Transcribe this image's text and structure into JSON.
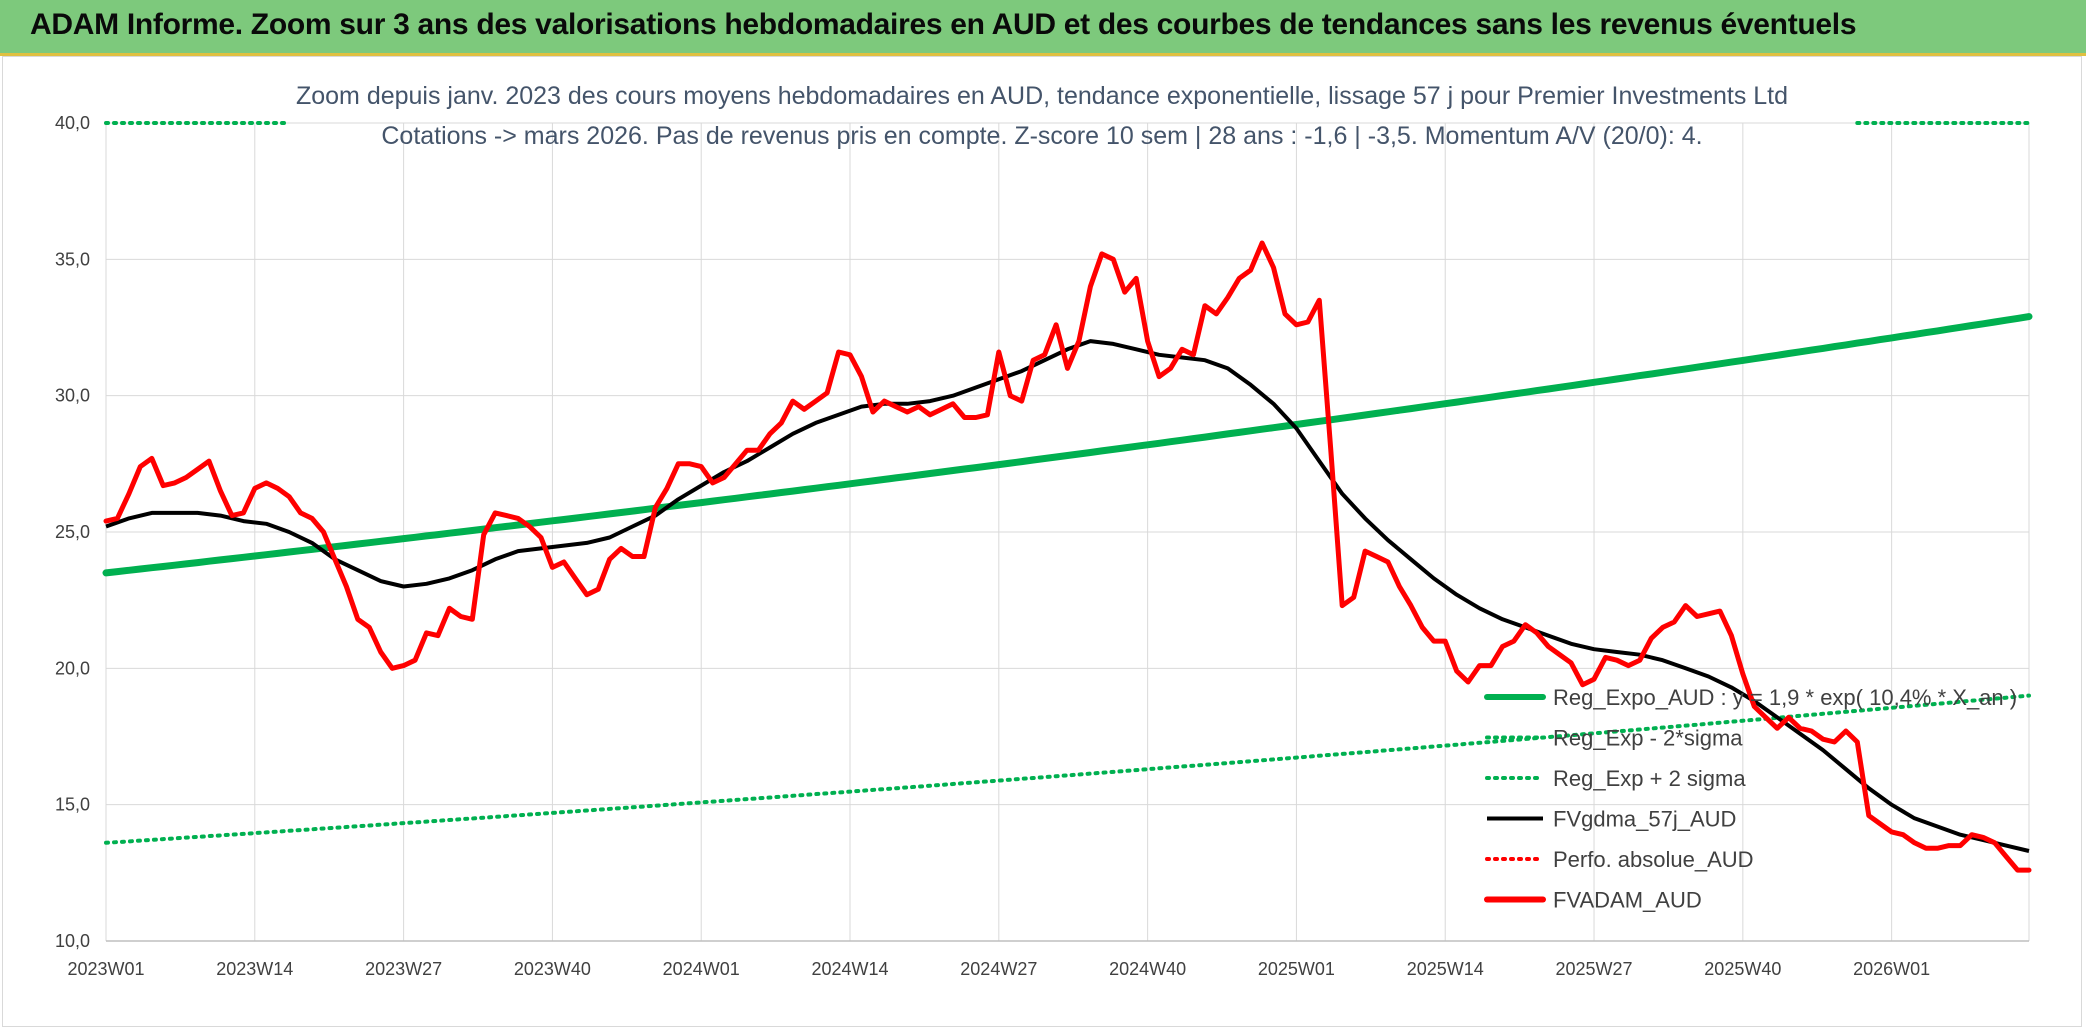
{
  "banner": {
    "title": "ADAM Informe. Zoom sur 3 ans des valorisations hebdomadaires en AUD et des courbes de tendances sans les revenus éventuels"
  },
  "chart_data": {
    "type": "line",
    "subtitle_line1": "Zoom depuis janv. 2023 des cours moyens hebdomadaires en AUD, tendance exponentielle, lissage 57 j pour Premier Investments Ltd",
    "subtitle_line2": "Cotations -> mars 2026. Pas de revenus pris en compte. Z-score 10 sem | 28 ans : -1,6 | -3,5. Momentum A/V (20/0): 4.",
    "xlabel": "",
    "ylabel": "",
    "ylim": [
      10,
      40
    ],
    "yticks": [
      "10,0",
      "15,0",
      "20,0",
      "25,0",
      "30,0",
      "35,0",
      "40,0"
    ],
    "x_tick_labels": [
      "2023W01",
      "2023W14",
      "2023W27",
      "2023W40",
      "2024W01",
      "2024W14",
      "2024W27",
      "2024W40",
      "2025W01",
      "2025W14",
      "2025W27",
      "2025W40",
      "2026W01"
    ],
    "x_tick_index": [
      0,
      13,
      26,
      39,
      52,
      65,
      78,
      91,
      104,
      117,
      130,
      143,
      156
    ],
    "n_weeks": 169,
    "gridlines": "horizontal and vertical",
    "legend_position": "bottom-right",
    "series": [
      {
        "name": "Reg_Expo_AUD : y = 1,9 * exp( 10,4% * X_an )",
        "color": "#00b050",
        "style": "solid-thick",
        "points": [
          [
            0,
            23.5
          ],
          [
            168,
            32.9
          ]
        ],
        "curve": "exponential"
      },
      {
        "name": "Reg_Exp - 2*sigma",
        "color": "#00b050",
        "style": "dotted",
        "points": [
          [
            0,
            13.6
          ],
          [
            168,
            19.0
          ]
        ],
        "curve": "exponential"
      },
      {
        "name": "Reg_Exp + 2 sigma",
        "color": "#00b050",
        "style": "dotted",
        "points": [
          [
            0,
            40.0
          ],
          [
            16,
            40.0
          ],
          [
            153,
            40.0
          ],
          [
            168,
            40.0
          ]
        ],
        "visible_ranges": [
          [
            0,
            16
          ],
          [
            153,
            168
          ]
        ],
        "curve": "linear"
      },
      {
        "name": "FVgdma_57j_AUD",
        "color": "#000000",
        "style": "solid",
        "points": [
          [
            0,
            25.2
          ],
          [
            2,
            25.5
          ],
          [
            4,
            25.7
          ],
          [
            6,
            25.7
          ],
          [
            8,
            25.7
          ],
          [
            10,
            25.6
          ],
          [
            12,
            25.4
          ],
          [
            14,
            25.3
          ],
          [
            16,
            25.0
          ],
          [
            18,
            24.6
          ],
          [
            20,
            24.0
          ],
          [
            22,
            23.6
          ],
          [
            24,
            23.2
          ],
          [
            26,
            23.0
          ],
          [
            28,
            23.1
          ],
          [
            30,
            23.3
          ],
          [
            32,
            23.6
          ],
          [
            34,
            24.0
          ],
          [
            36,
            24.3
          ],
          [
            38,
            24.4
          ],
          [
            40,
            24.5
          ],
          [
            42,
            24.6
          ],
          [
            44,
            24.8
          ],
          [
            46,
            25.2
          ],
          [
            48,
            25.6
          ],
          [
            50,
            26.2
          ],
          [
            52,
            26.7
          ],
          [
            54,
            27.2
          ],
          [
            56,
            27.6
          ],
          [
            58,
            28.1
          ],
          [
            60,
            28.6
          ],
          [
            62,
            29.0
          ],
          [
            64,
            29.3
          ],
          [
            66,
            29.6
          ],
          [
            68,
            29.7
          ],
          [
            70,
            29.7
          ],
          [
            72,
            29.8
          ],
          [
            74,
            30.0
          ],
          [
            76,
            30.3
          ],
          [
            78,
            30.6
          ],
          [
            80,
            30.9
          ],
          [
            82,
            31.3
          ],
          [
            84,
            31.7
          ],
          [
            86,
            32.0
          ],
          [
            88,
            31.9
          ],
          [
            90,
            31.7
          ],
          [
            92,
            31.5
          ],
          [
            94,
            31.4
          ],
          [
            96,
            31.3
          ],
          [
            98,
            31.0
          ],
          [
            100,
            30.4
          ],
          [
            102,
            29.7
          ],
          [
            104,
            28.8
          ],
          [
            106,
            27.6
          ],
          [
            108,
            26.4
          ],
          [
            110,
            25.5
          ],
          [
            112,
            24.7
          ],
          [
            114,
            24.0
          ],
          [
            116,
            23.3
          ],
          [
            118,
            22.7
          ],
          [
            120,
            22.2
          ],
          [
            122,
            21.8
          ],
          [
            124,
            21.5
          ],
          [
            126,
            21.2
          ],
          [
            128,
            20.9
          ],
          [
            130,
            20.7
          ],
          [
            132,
            20.6
          ],
          [
            134,
            20.5
          ],
          [
            136,
            20.3
          ],
          [
            138,
            20.0
          ],
          [
            140,
            19.7
          ],
          [
            142,
            19.3
          ],
          [
            144,
            18.8
          ],
          [
            146,
            18.2
          ],
          [
            148,
            17.6
          ],
          [
            150,
            17.0
          ],
          [
            152,
            16.3
          ],
          [
            154,
            15.6
          ],
          [
            156,
            15.0
          ],
          [
            158,
            14.5
          ],
          [
            160,
            14.2
          ],
          [
            162,
            13.9
          ],
          [
            164,
            13.7
          ],
          [
            166,
            13.5
          ],
          [
            168,
            13.3
          ]
        ]
      },
      {
        "name": "Perfo. absolue_AUD",
        "color": "#ff0000",
        "style": "dotted",
        "points": []
      },
      {
        "name": "FVADAM_AUD",
        "color": "#ff0000",
        "style": "solid-thick",
        "points": [
          [
            0,
            25.4
          ],
          [
            1,
            25.5
          ],
          [
            2,
            26.4
          ],
          [
            3,
            27.4
          ],
          [
            4,
            27.7
          ],
          [
            5,
            26.7
          ],
          [
            6,
            26.8
          ],
          [
            7,
            27.0
          ],
          [
            8,
            27.3
          ],
          [
            9,
            27.6
          ],
          [
            10,
            26.5
          ],
          [
            11,
            25.6
          ],
          [
            12,
            25.7
          ],
          [
            13,
            26.6
          ],
          [
            14,
            26.8
          ],
          [
            15,
            26.6
          ],
          [
            16,
            26.3
          ],
          [
            17,
            25.7
          ],
          [
            18,
            25.5
          ],
          [
            19,
            25.0
          ],
          [
            20,
            24.0
          ],
          [
            21,
            23.0
          ],
          [
            22,
            21.8
          ],
          [
            23,
            21.5
          ],
          [
            24,
            20.6
          ],
          [
            25,
            20.0
          ],
          [
            26,
            20.1
          ],
          [
            27,
            20.3
          ],
          [
            28,
            21.3
          ],
          [
            29,
            21.2
          ],
          [
            30,
            22.2
          ],
          [
            31,
            21.9
          ],
          [
            32,
            21.8
          ],
          [
            33,
            24.9
          ],
          [
            34,
            25.7
          ],
          [
            35,
            25.6
          ],
          [
            36,
            25.5
          ],
          [
            37,
            25.2
          ],
          [
            38,
            24.8
          ],
          [
            39,
            23.7
          ],
          [
            40,
            23.9
          ],
          [
            41,
            23.3
          ],
          [
            42,
            22.7
          ],
          [
            43,
            22.9
          ],
          [
            44,
            24.0
          ],
          [
            45,
            24.4
          ],
          [
            46,
            24.1
          ],
          [
            47,
            24.1
          ],
          [
            48,
            25.9
          ],
          [
            49,
            26.6
          ],
          [
            50,
            27.5
          ],
          [
            51,
            27.5
          ],
          [
            52,
            27.4
          ],
          [
            53,
            26.8
          ],
          [
            54,
            27.0
          ],
          [
            55,
            27.5
          ],
          [
            56,
            28.0
          ],
          [
            57,
            28.0
          ],
          [
            58,
            28.6
          ],
          [
            59,
            29.0
          ],
          [
            60,
            29.8
          ],
          [
            61,
            29.5
          ],
          [
            62,
            29.8
          ],
          [
            63,
            30.1
          ],
          [
            64,
            31.6
          ],
          [
            65,
            31.5
          ],
          [
            66,
            30.7
          ],
          [
            67,
            29.4
          ],
          [
            68,
            29.8
          ],
          [
            69,
            29.6
          ],
          [
            70,
            29.4
          ],
          [
            71,
            29.6
          ],
          [
            72,
            29.3
          ],
          [
            73,
            29.5
          ],
          [
            74,
            29.7
          ],
          [
            75,
            29.2
          ],
          [
            76,
            29.2
          ],
          [
            77,
            29.3
          ],
          [
            78,
            31.6
          ],
          [
            79,
            30.0
          ],
          [
            80,
            29.8
          ],
          [
            81,
            31.3
          ],
          [
            82,
            31.5
          ],
          [
            83,
            32.6
          ],
          [
            84,
            31.0
          ],
          [
            85,
            32.0
          ],
          [
            86,
            34.0
          ],
          [
            87,
            35.2
          ],
          [
            88,
            35.0
          ],
          [
            89,
            33.8
          ],
          [
            90,
            34.3
          ],
          [
            91,
            32.0
          ],
          [
            92,
            30.7
          ],
          [
            93,
            31.0
          ],
          [
            94,
            31.7
          ],
          [
            95,
            31.5
          ],
          [
            96,
            33.3
          ],
          [
            97,
            33.0
          ],
          [
            98,
            33.6
          ],
          [
            99,
            34.3
          ],
          [
            100,
            34.6
          ],
          [
            101,
            35.6
          ],
          [
            102,
            34.7
          ],
          [
            103,
            33.0
          ],
          [
            104,
            32.6
          ],
          [
            105,
            32.7
          ],
          [
            106,
            33.5
          ],
          [
            107,
            28.0
          ],
          [
            108,
            22.3
          ],
          [
            109,
            22.6
          ],
          [
            110,
            24.3
          ],
          [
            111,
            24.1
          ],
          [
            112,
            23.9
          ],
          [
            113,
            23.0
          ],
          [
            114,
            22.3
          ],
          [
            115,
            21.5
          ],
          [
            116,
            21.0
          ],
          [
            117,
            21.0
          ],
          [
            118,
            19.9
          ],
          [
            119,
            19.5
          ],
          [
            120,
            20.1
          ],
          [
            121,
            20.1
          ],
          [
            122,
            20.8
          ],
          [
            123,
            21.0
          ],
          [
            124,
            21.6
          ],
          [
            125,
            21.3
          ],
          [
            126,
            20.8
          ],
          [
            127,
            20.5
          ],
          [
            128,
            20.2
          ],
          [
            129,
            19.4
          ],
          [
            130,
            19.6
          ],
          [
            131,
            20.4
          ],
          [
            132,
            20.3
          ],
          [
            133,
            20.1
          ],
          [
            134,
            20.3
          ],
          [
            135,
            21.1
          ],
          [
            136,
            21.5
          ],
          [
            137,
            21.7
          ],
          [
            138,
            22.3
          ],
          [
            139,
            21.9
          ],
          [
            140,
            22.0
          ],
          [
            141,
            22.1
          ],
          [
            142,
            21.2
          ],
          [
            143,
            19.8
          ],
          [
            144,
            18.6
          ],
          [
            145,
            18.2
          ],
          [
            146,
            17.8
          ],
          [
            147,
            18.2
          ],
          [
            148,
            17.8
          ],
          [
            149,
            17.7
          ],
          [
            150,
            17.4
          ],
          [
            151,
            17.3
          ],
          [
            152,
            17.7
          ],
          [
            153,
            17.3
          ],
          [
            154,
            14.6
          ],
          [
            155,
            14.3
          ],
          [
            156,
            14.0
          ],
          [
            157,
            13.9
          ],
          [
            158,
            13.6
          ],
          [
            159,
            13.4
          ],
          [
            160,
            13.4
          ],
          [
            161,
            13.5
          ],
          [
            162,
            13.5
          ],
          [
            163,
            13.9
          ],
          [
            164,
            13.8
          ],
          [
            165,
            13.6
          ],
          [
            166,
            13.1
          ],
          [
            167,
            12.6
          ],
          [
            168,
            12.6
          ]
        ]
      }
    ]
  }
}
